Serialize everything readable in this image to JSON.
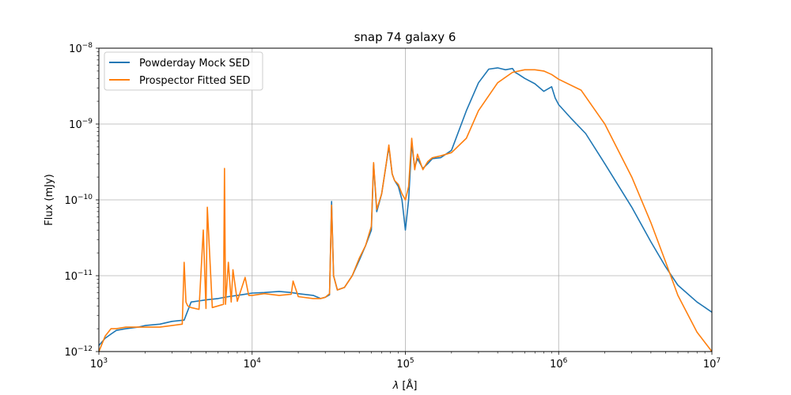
{
  "chart_data": {
    "type": "line",
    "title": "snap 74 galaxy 6",
    "xlabel": "λ [Å]",
    "ylabel": "Flux (mJy)",
    "xscale": "log",
    "yscale": "log",
    "xlim": [
      1000,
      10000000
    ],
    "ylim": [
      1e-12,
      1e-08
    ],
    "x_ticks": [
      {
        "value": 1000,
        "base": "10",
        "exp": "3"
      },
      {
        "value": 10000,
        "base": "10",
        "exp": "4"
      },
      {
        "value": 100000,
        "base": "10",
        "exp": "5"
      },
      {
        "value": 1000000,
        "base": "10",
        "exp": "6"
      },
      {
        "value": 10000000,
        "base": "10",
        "exp": "7"
      }
    ],
    "y_ticks": [
      {
        "value": 1e-12,
        "base": "10",
        "exp": "−12"
      },
      {
        "value": 1e-11,
        "base": "10",
        "exp": "−11"
      },
      {
        "value": 1e-10,
        "base": "10",
        "exp": "−10"
      },
      {
        "value": 1e-09,
        "base": "10",
        "exp": "−9"
      },
      {
        "value": 1e-08,
        "base": "10",
        "exp": "−8"
      }
    ],
    "grid": true,
    "legend_position": "upper-left",
    "series": [
      {
        "name": "Powderday Mock SED",
        "color": "#1f77b4",
        "x": [
          1000,
          1100,
          1200,
          1300,
          1500,
          1800,
          2000,
          2500,
          3000,
          3600,
          4000,
          5000,
          6000,
          7000,
          8000,
          9000,
          10000,
          12000,
          15000,
          18000,
          20000,
          25000,
          28000,
          30000,
          32000,
          33000,
          34000,
          36000,
          40000,
          45000,
          50000,
          55000,
          60000,
          62000,
          65000,
          70000,
          75000,
          78000,
          82000,
          85000,
          90000,
          95000,
          100000,
          105000,
          110000,
          115000,
          120000,
          130000,
          140000,
          150000,
          170000,
          200000,
          250000,
          300000,
          350000,
          400000,
          450000,
          500000,
          520000,
          550000,
          600000,
          700000,
          800000,
          900000,
          950000,
          1000000,
          1200000,
          1500000,
          2000000,
          3000000,
          4000000,
          5000000,
          6000000,
          8000000,
          10000000
        ],
        "y": [
          1.2e-12,
          1.5e-12,
          1.7e-12,
          1.9e-12,
          2e-12,
          2.1e-12,
          2.2e-12,
          2.3e-12,
          2.5e-12,
          2.6e-12,
          4.5e-12,
          4.8e-12,
          5e-12,
          5.3e-12,
          5.5e-12,
          5.7e-12,
          5.9e-12,
          6e-12,
          6.2e-12,
          6e-12,
          5.8e-12,
          5.5e-12,
          5e-12,
          5.2e-12,
          5.6e-12,
          9.5e-11,
          1e-11,
          6.5e-12,
          7e-12,
          1e-11,
          1.6e-11,
          2.5e-11,
          4e-11,
          3e-10,
          7e-11,
          1.2e-10,
          3e-10,
          5e-10,
          2.2e-10,
          1.8e-10,
          1.5e-10,
          1e-10,
          4e-11,
          1e-10,
          5.5e-10,
          2.7e-10,
          3.5e-10,
          2.6e-10,
          3e-10,
          3.5e-10,
          3.6e-10,
          4.5e-10,
          1.5e-09,
          3.5e-09,
          5.3e-09,
          5.5e-09,
          5.2e-09,
          5.4e-09,
          4.8e-09,
          4.5e-09,
          4e-09,
          3.4e-09,
          2.7e-09,
          3.1e-09,
          2.2e-09,
          1.8e-09,
          1.2e-09,
          7.5e-10,
          3e-10,
          8e-11,
          2.8e-11,
          1.3e-11,
          7.5e-12,
          4.5e-12,
          3.3e-12
        ]
      },
      {
        "name": "Prospector Fitted SED",
        "color": "#ff7f0e",
        "x": [
          1000,
          1100,
          1200,
          1300,
          1500,
          1800,
          2000,
          2500,
          3000,
          3500,
          3600,
          3700,
          3800,
          4000,
          4500,
          4800,
          5000,
          5100,
          5500,
          6000,
          6500,
          6600,
          6700,
          7000,
          7300,
          7500,
          8000,
          9000,
          9500,
          10000,
          12000,
          15000,
          18000,
          18500,
          20000,
          25000,
          28000,
          30000,
          32000,
          33000,
          34000,
          36000,
          40000,
          45000,
          50000,
          55000,
          60000,
          62000,
          65000,
          70000,
          75000,
          78000,
          82000,
          85000,
          90000,
          95000,
          100000,
          105000,
          110000,
          115000,
          120000,
          130000,
          140000,
          150000,
          170000,
          200000,
          250000,
          300000,
          400000,
          500000,
          600000,
          700000,
          800000,
          900000,
          1000000,
          1400000,
          2000000,
          3000000,
          4000000,
          5000000,
          6000000,
          8000000,
          10000000
        ],
        "y": [
          1e-12,
          1.6e-12,
          2e-12,
          2e-12,
          2.1e-12,
          2.1e-12,
          2.1e-12,
          2.1e-12,
          2.2e-12,
          2.3e-12,
          1.5e-11,
          4.5e-12,
          4e-12,
          3.8e-12,
          3.6e-12,
          4e-11,
          3.7e-12,
          8e-11,
          3.8e-12,
          4e-12,
          4.2e-12,
          2.6e-10,
          4.2e-12,
          1.5e-11,
          4.5e-12,
          1.2e-11,
          4.6e-12,
          9.5e-12,
          5.5e-12,
          5.5e-12,
          5.8e-12,
          5.5e-12,
          5.7e-12,
          8.5e-12,
          5.3e-12,
          5e-12,
          5e-12,
          5.2e-12,
          5.8e-12,
          8.5e-11,
          1e-11,
          6.5e-12,
          7e-12,
          1e-11,
          1.7e-11,
          2.5e-11,
          4.5e-11,
          3.1e-10,
          7.5e-11,
          1.2e-10,
          3e-10,
          5.3e-10,
          2.2e-10,
          1.8e-10,
          1.6e-10,
          1.2e-10,
          1e-10,
          1.5e-10,
          6.5e-10,
          2.5e-10,
          4e-10,
          2.5e-10,
          3.2e-10,
          3.6e-10,
          3.8e-10,
          4.2e-10,
          6.5e-10,
          1.5e-09,
          3.5e-09,
          4.8e-09,
          5.2e-09,
          5.2e-09,
          5e-09,
          4.5e-09,
          3.9e-09,
          2.8e-09,
          1e-09,
          2e-10,
          5e-11,
          1.5e-11,
          5.5e-12,
          1.8e-12,
          1e-12
        ]
      }
    ]
  }
}
